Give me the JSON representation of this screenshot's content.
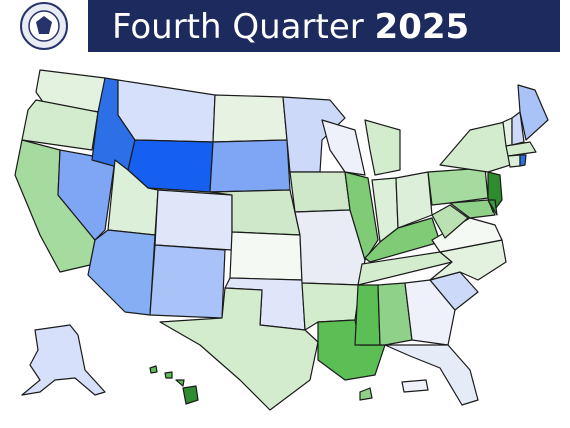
{
  "header": {
    "title": "Fourth Quarter",
    "year": "2025"
  }
}
